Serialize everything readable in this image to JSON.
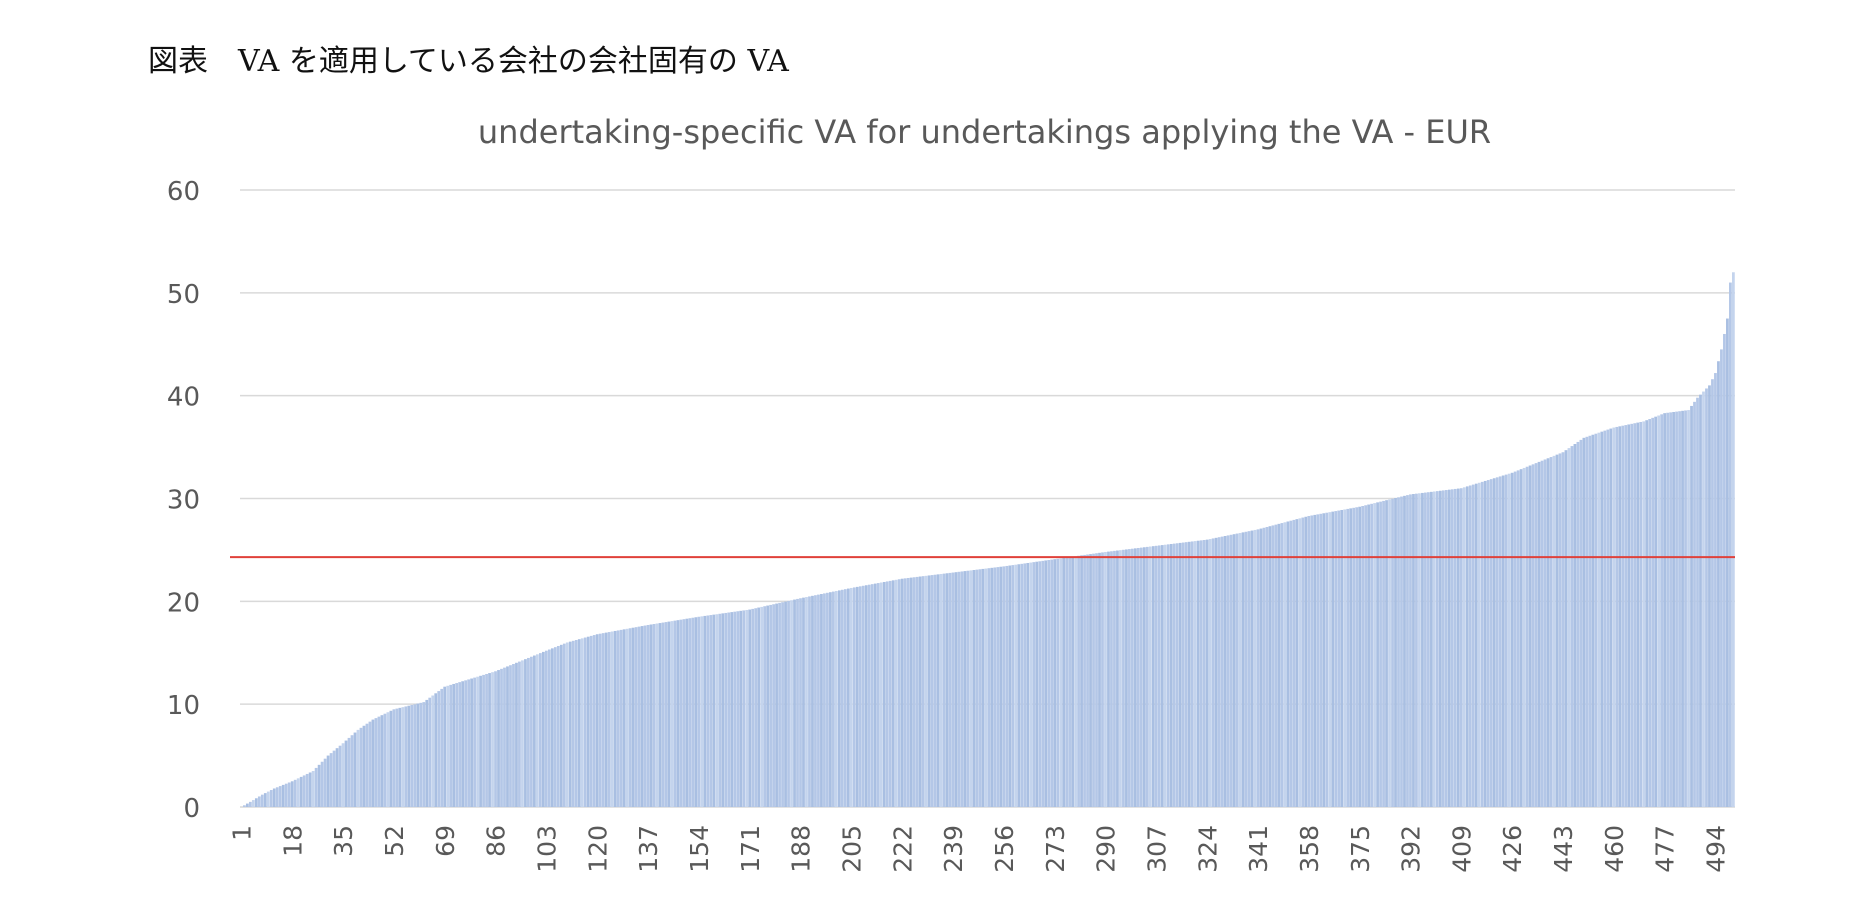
{
  "caption": "図表　VA を適用している会社の会社固有の VA",
  "chart_data": {
    "type": "bar",
    "title": "undertaking-specific VA for undertakings applying the VA - EUR",
    "xlabel": "",
    "ylabel": "",
    "ylim": [
      0,
      60
    ],
    "y_ticks": [
      0,
      10,
      20,
      30,
      40,
      50,
      60
    ],
    "x_tick_labels": [
      "1",
      "18",
      "35",
      "52",
      "69",
      "86",
      "103",
      "120",
      "137",
      "154",
      "171",
      "188",
      "205",
      "222",
      "239",
      "256",
      "273",
      "290",
      "307",
      "324",
      "341",
      "358",
      "375",
      "392",
      "409",
      "426",
      "443",
      "460",
      "477",
      "494"
    ],
    "n_bars": 500,
    "grid": true,
    "bar_color": "#b4c7e7",
    "reference_line": {
      "value": 24.3,
      "color": "#e0413a"
    },
    "sorted_value_anchors": [
      [
        1,
        0
      ],
      [
        4,
        0.5
      ],
      [
        8,
        1.2
      ],
      [
        12,
        1.8
      ],
      [
        18,
        2.5
      ],
      [
        25,
        3.5
      ],
      [
        30,
        5
      ],
      [
        35,
        6.2
      ],
      [
        40,
        7.5
      ],
      [
        45,
        8.5
      ],
      [
        52,
        9.5
      ],
      [
        62,
        10.2
      ],
      [
        69,
        11.7
      ],
      [
        86,
        13.2
      ],
      [
        103,
        15.2
      ],
      [
        110,
        16.0
      ],
      [
        120,
        16.8
      ],
      [
        137,
        17.7
      ],
      [
        154,
        18.5
      ],
      [
        171,
        19.2
      ],
      [
        188,
        20.3
      ],
      [
        205,
        21.3
      ],
      [
        222,
        22.2
      ],
      [
        239,
        22.8
      ],
      [
        256,
        23.4
      ],
      [
        273,
        24.1
      ],
      [
        290,
        24.8
      ],
      [
        307,
        25.4
      ],
      [
        324,
        26.0
      ],
      [
        341,
        27.0
      ],
      [
        358,
        28.3
      ],
      [
        375,
        29.2
      ],
      [
        392,
        30.4
      ],
      [
        409,
        31.0
      ],
      [
        426,
        32.5
      ],
      [
        443,
        34.5
      ],
      [
        450,
        35.9
      ],
      [
        460,
        36.9
      ],
      [
        470,
        37.5
      ],
      [
        477,
        38.3
      ],
      [
        485,
        38.6
      ],
      [
        488,
        39.8
      ],
      [
        492,
        41.0
      ],
      [
        494,
        42.2
      ],
      [
        496,
        44.5
      ],
      [
        498,
        47.5
      ],
      [
        499,
        51.0
      ],
      [
        500,
        52.0
      ]
    ]
  }
}
